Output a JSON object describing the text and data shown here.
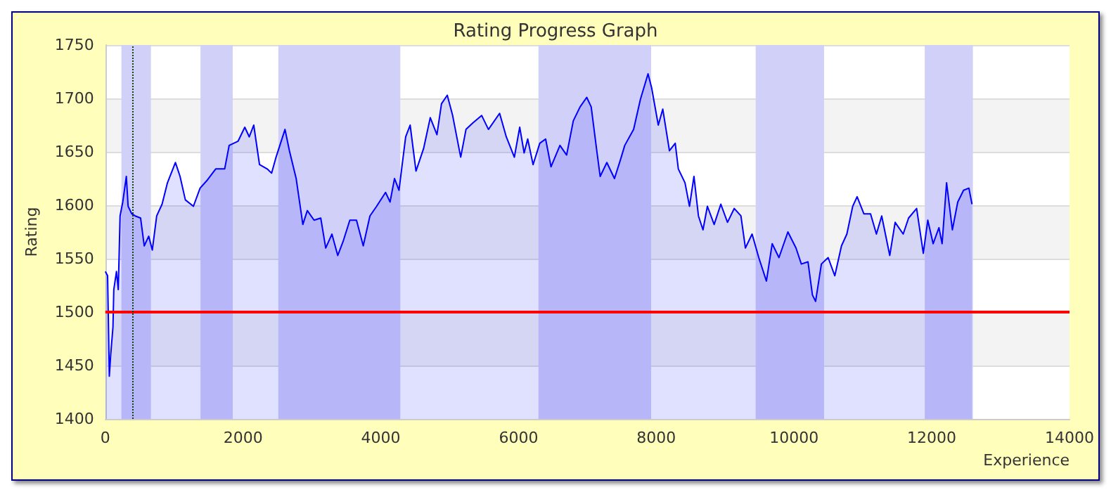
{
  "chart_data": {
    "type": "area",
    "title": "Rating Progress Graph",
    "xlabel": "Experience",
    "ylabel": "Rating",
    "x": [
      0,
      33,
      58,
      78,
      111,
      123,
      162,
      188,
      214,
      253,
      305,
      331,
      383,
      434,
      512,
      565,
      630,
      682,
      746,
      824,
      902,
      1018,
      1085,
      1162,
      1279,
      1376,
      1474,
      1603,
      1733,
      1798,
      1928,
      2025,
      2090,
      2155,
      2239,
      2350,
      2414,
      2479,
      2609,
      2673,
      2771,
      2868,
      2933,
      3031,
      3128,
      3200,
      3290,
      3375,
      3452,
      3550,
      3647,
      3745,
      3842,
      3939,
      4069,
      4134,
      4199,
      4264,
      4361,
      4426,
      4511,
      4621,
      4718,
      4815,
      4881,
      4965,
      5043,
      5160,
      5237,
      5335,
      5465,
      5563,
      5725,
      5822,
      5939,
      6017,
      6081,
      6133,
      6211,
      6308,
      6393,
      6471,
      6601,
      6698,
      6795,
      6893,
      6990,
      7055,
      7140,
      7185,
      7282,
      7393,
      7477,
      7542,
      7671,
      7769,
      7880,
      7932,
      8029,
      8094,
      8191,
      8275,
      8320,
      8417,
      8482,
      8547,
      8612,
      8678,
      8742,
      8840,
      8937,
      9034,
      9132,
      9229,
      9294,
      9391,
      9488,
      9599,
      9683,
      9781,
      9911,
      10028,
      10106,
      10203,
      10267,
      10313,
      10397,
      10495,
      10592,
      10689,
      10767,
      10852,
      10916,
      11014,
      11111,
      11196,
      11273,
      11390,
      11468,
      11585,
      11663,
      11780,
      11877,
      11942,
      12020,
      12104,
      12150,
      12215,
      12299,
      12377,
      12461,
      12539,
      12584
    ],
    "series": [
      {
        "color": "#0000ff",
        "values": [
          1538,
          1534,
          1440,
          1460,
          1486,
          1521,
          1538,
          1521,
          1590,
          1603,
          1627,
          1599,
          1592,
          1590,
          1588,
          1562,
          1571,
          1558,
          1590,
          1601,
          1621,
          1640,
          1627,
          1605,
          1599,
          1616,
          1623,
          1634,
          1634,
          1656,
          1660,
          1673,
          1664,
          1675,
          1638,
          1634,
          1630,
          1645,
          1671,
          1651,
          1625,
          1582,
          1595,
          1586,
          1588,
          1560,
          1573,
          1553,
          1566,
          1586,
          1586,
          1562,
          1590,
          1599,
          1612,
          1603,
          1625,
          1614,
          1664,
          1675,
          1632,
          1653,
          1682,
          1666,
          1695,
          1703,
          1684,
          1645,
          1671,
          1677,
          1684,
          1671,
          1686,
          1664,
          1645,
          1673,
          1649,
          1662,
          1638,
          1658,
          1662,
          1636,
          1656,
          1647,
          1679,
          1692,
          1701,
          1692,
          1649,
          1627,
          1640,
          1625,
          1642,
          1656,
          1671,
          1699,
          1723,
          1710,
          1675,
          1690,
          1651,
          1658,
          1634,
          1621,
          1599,
          1627,
          1590,
          1577,
          1599,
          1582,
          1601,
          1584,
          1597,
          1590,
          1560,
          1573,
          1551,
          1529,
          1564,
          1551,
          1575,
          1560,
          1545,
          1547,
          1516,
          1510,
          1545,
          1551,
          1534,
          1562,
          1573,
          1599,
          1608,
          1592,
          1592,
          1573,
          1590,
          1553,
          1584,
          1573,
          1588,
          1597,
          1555,
          1586,
          1564,
          1579,
          1564,
          1621,
          1577,
          1603,
          1614,
          1616,
          1601
        ]
      }
    ],
    "xlim": [
      0,
      14000
    ],
    "xticks": [
      0,
      2000,
      4000,
      6000,
      8000,
      10000,
      12000,
      14000
    ],
    "ylim": [
      1400,
      1750
    ],
    "yticks": [
      1400,
      1450,
      1500,
      1550,
      1600,
      1650,
      1700,
      1750
    ],
    "grid": "y",
    "ref_lines": [
      {
        "axis": "y",
        "value": 1500,
        "color": "#ff0000",
        "line_style": "solid"
      },
      {
        "axis": "x",
        "value": 400,
        "color": "#114411",
        "line_style": "dotted"
      }
    ],
    "bands": [
      {
        "axis": "x",
        "from": 234,
        "to": 662,
        "color": "#d0d0f8"
      },
      {
        "axis": "x",
        "from": 1382,
        "to": 1850,
        "color": "#d0d0f8"
      },
      {
        "axis": "x",
        "from": 2512,
        "to": 4283,
        "color": "#d0d0f8"
      },
      {
        "axis": "x",
        "from": 6289,
        "to": 7925,
        "color": "#d0d0f8"
      },
      {
        "axis": "x",
        "from": 9443,
        "to": 10436,
        "color": "#d0d0f8"
      },
      {
        "axis": "x",
        "from": 11898,
        "to": 12597,
        "color": "#d0d0f8"
      }
    ]
  }
}
